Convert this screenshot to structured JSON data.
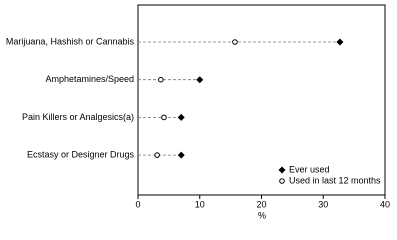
{
  "chart_data": {
    "type": "dot",
    "categories": [
      "Marijuana, Hashish or Cannabis",
      "Amphetamines/Speed",
      "Pain Killers or Analgesics(a)",
      "Ecstasy or Designer Drugs"
    ],
    "series": [
      {
        "name": "Ever used",
        "color": "#000000",
        "marker": "diamond",
        "values": [
          32.7,
          10.0,
          7.0,
          7.0
        ]
      },
      {
        "name": "Used in last 12 months",
        "color": "#000000",
        "marker": "circle",
        "values": [
          15.7,
          3.7,
          4.2,
          3.1
        ]
      }
    ],
    "xlabel": "%",
    "xlim": [
      0,
      40
    ],
    "xticks": [
      0,
      10,
      20,
      30,
      40
    ],
    "legend": "lower right"
  }
}
